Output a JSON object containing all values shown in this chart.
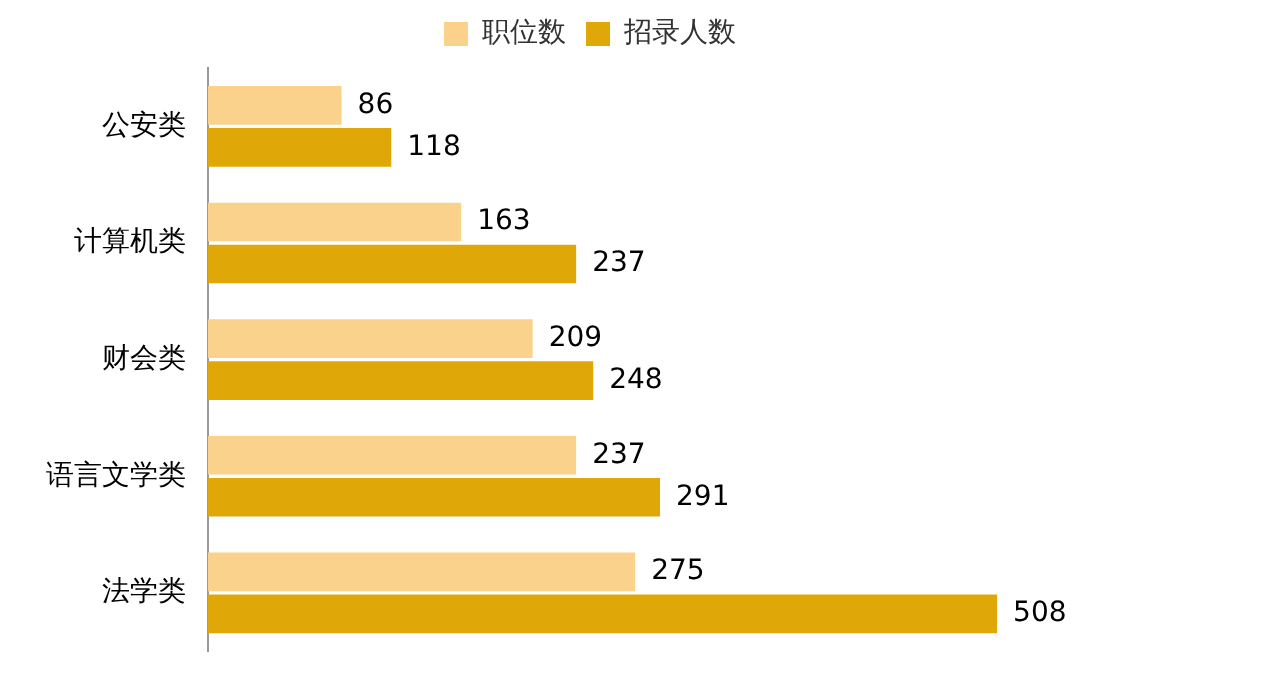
{
  "chart_data": {
    "type": "bar",
    "orientation": "horizontal",
    "categories": [
      "公安类",
      "计算机类",
      "财会类",
      "语言文学类",
      "法学类"
    ],
    "series": [
      {
        "name": "职位数",
        "color": "#fbd28c",
        "values": [
          86,
          163,
          209,
          237,
          275
        ]
      },
      {
        "name": "招录人数",
        "color": "#dfa708",
        "values": [
          118,
          237,
          248,
          291,
          508
        ]
      }
    ],
    "data_labels": true,
    "legend": "top"
  }
}
